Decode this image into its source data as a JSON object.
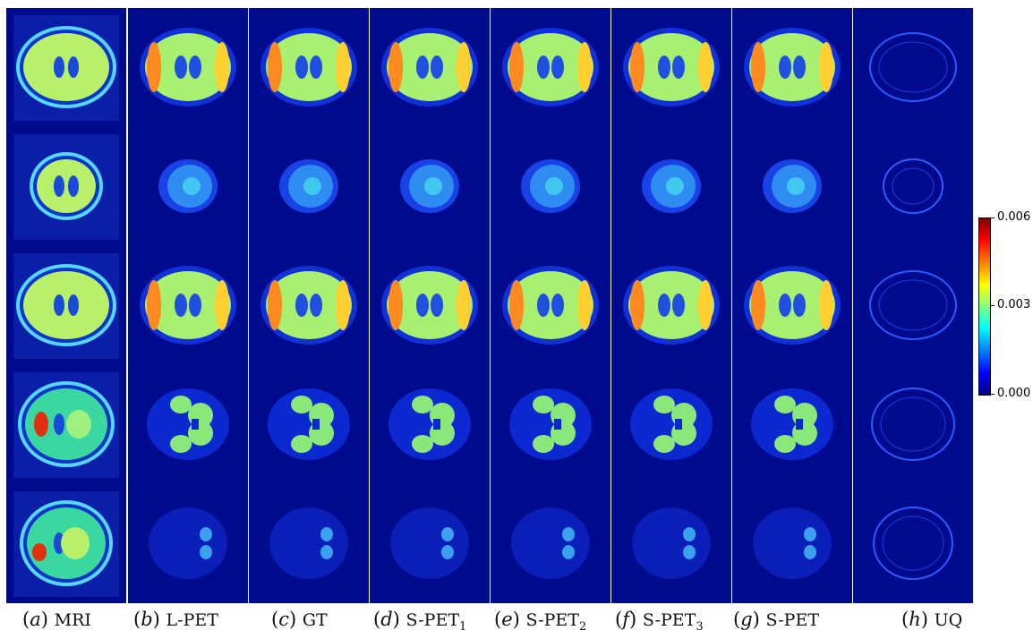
{
  "columns": [
    {
      "label_letter": "a",
      "label_text": "MRI",
      "label_sub": ""
    },
    {
      "label_letter": "b",
      "label_text": "L-PET",
      "label_sub": ""
    },
    {
      "label_letter": "c",
      "label_text": "GT",
      "label_sub": ""
    },
    {
      "label_letter": "d",
      "label_text": "S-PET",
      "label_sub": "1"
    },
    {
      "label_letter": "e",
      "label_text": "S-PET",
      "label_sub": "2"
    },
    {
      "label_letter": "f",
      "label_text": "S-PET",
      "label_sub": "3"
    },
    {
      "label_letter": "g",
      "label_text": "S-PET",
      "label_sub": ""
    },
    {
      "label_letter": "h",
      "label_text": "UQ",
      "label_sub": ""
    }
  ],
  "colorbar": {
    "max_label": "0.006",
    "mid_label": "0.003",
    "min_label": "0.000",
    "colormap": "jet"
  },
  "colors": {
    "background": "#000a8c",
    "separator": "#ffffff"
  }
}
